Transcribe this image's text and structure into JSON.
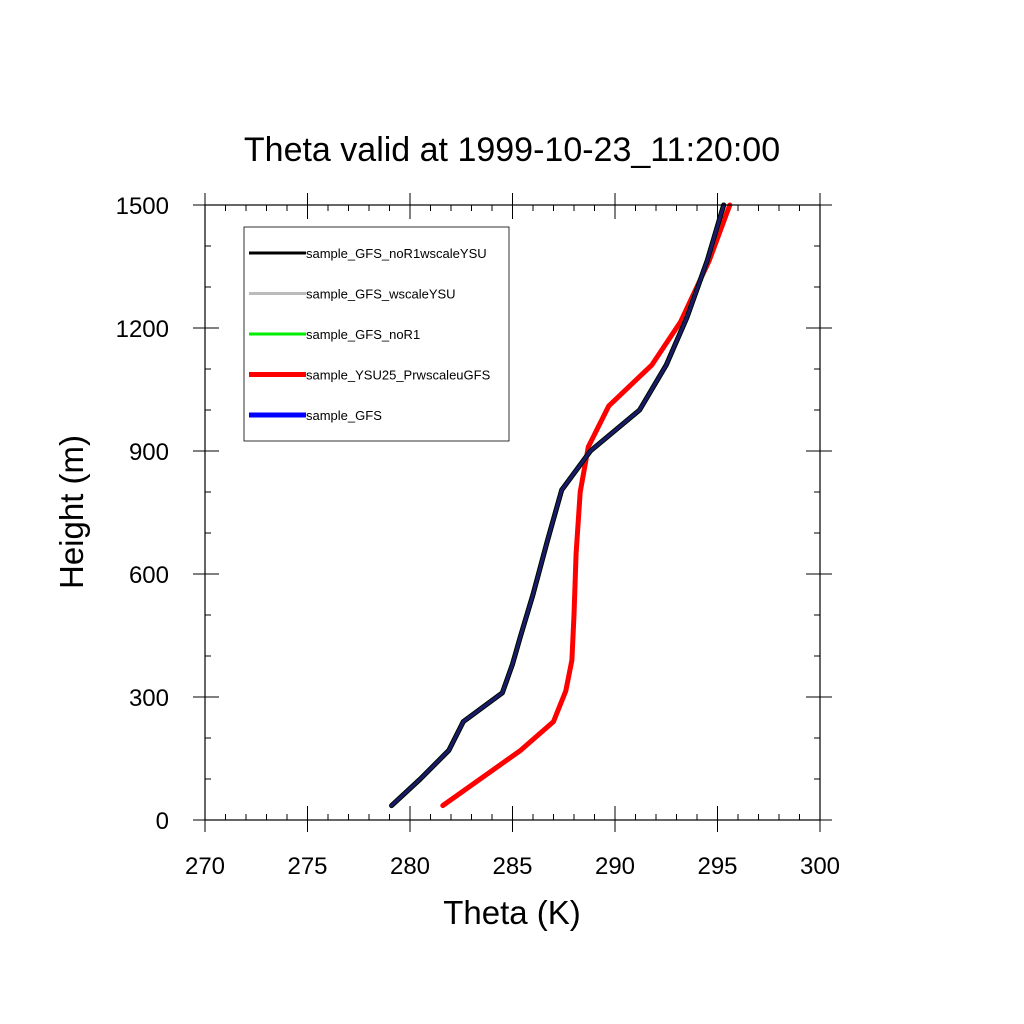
{
  "chart_data": {
    "type": "line",
    "title": "Theta valid at 1999-10-23_11:20:00",
    "xlabel": "Theta (K)",
    "ylabel": "Height (m)",
    "xlim": [
      270,
      300
    ],
    "ylim": [
      0,
      1500
    ],
    "xticks": [
      "270",
      "275",
      "280",
      "285",
      "290",
      "295",
      "300"
    ],
    "yticks": [
      "0",
      "300",
      "600",
      "900",
      "1200",
      "1500"
    ],
    "grid": false,
    "legend_position": "top-left",
    "series": [
      {
        "name": "sample_GFS_noR1wscaleYSU",
        "color": "#000000",
        "x": [
          279.1,
          280.5,
          281.9,
          282.6,
          284.5,
          285.0,
          285.4,
          286.0,
          286.7,
          287.4,
          288.8,
          291.2,
          292.5,
          293.5,
          294.5,
          295.3
        ],
        "y": [
          35,
          100,
          170,
          240,
          310,
          380,
          450,
          550,
          680,
          805,
          900,
          1000,
          1110,
          1225,
          1365,
          1500
        ]
      },
      {
        "name": "sample_GFS_wscaleYSU",
        "color": "#bbbbbb",
        "x": [
          279.1,
          280.5,
          281.9,
          282.6,
          284.5,
          285.0,
          285.4,
          286.0,
          286.7,
          287.4,
          288.8,
          291.2,
          292.5,
          293.5,
          294.5,
          295.3
        ],
        "y": [
          35,
          100,
          170,
          240,
          310,
          380,
          450,
          550,
          680,
          805,
          900,
          1000,
          1110,
          1225,
          1365,
          1500
        ]
      },
      {
        "name": "sample_GFS_noR1",
        "color": "#00ee00",
        "x": [
          279.1,
          280.5,
          281.9,
          282.6,
          284.5,
          285.0,
          285.4,
          286.0,
          286.7,
          287.4,
          288.8,
          291.2,
          292.5,
          293.5,
          294.5,
          295.3
        ],
        "y": [
          35,
          100,
          170,
          240,
          310,
          380,
          450,
          550,
          680,
          805,
          900,
          1000,
          1110,
          1225,
          1365,
          1500
        ]
      },
      {
        "name": "sample_YSU25_PrwscaleuGFS",
        "color": "#ff0000",
        "x": [
          281.6,
          285.4,
          287.0,
          287.6,
          287.9,
          288.0,
          288.1,
          288.3,
          288.7,
          289.7,
          291.8,
          293.2,
          294.6,
          295.6
        ],
        "y": [
          35,
          170,
          240,
          315,
          390,
          500,
          650,
          800,
          910,
          1010,
          1110,
          1215,
          1365,
          1500
        ]
      },
      {
        "name": "sample_GFS",
        "color": "#0000ff",
        "x": [
          279.1,
          280.5,
          281.9,
          282.6,
          284.5,
          285.0,
          285.4,
          286.0,
          286.7,
          287.4,
          288.8,
          291.2,
          292.5,
          293.5,
          294.5,
          295.3
        ],
        "y": [
          35,
          100,
          170,
          240,
          310,
          380,
          450,
          550,
          680,
          805,
          900,
          1000,
          1110,
          1225,
          1365,
          1500
        ]
      }
    ]
  }
}
